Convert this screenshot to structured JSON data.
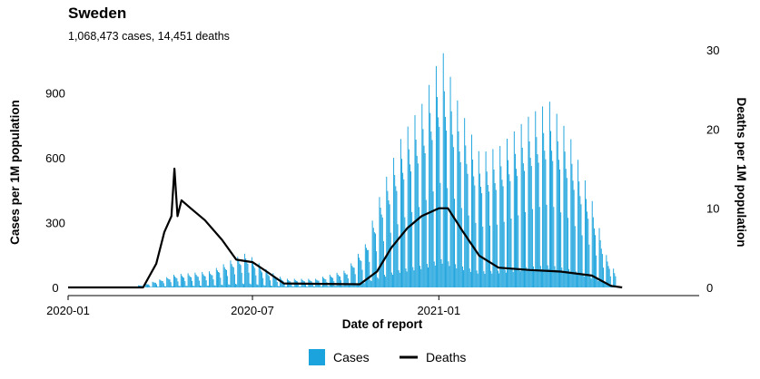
{
  "chart_data": {
    "type": "bar+line",
    "title": "Sweden",
    "subtitle": "1,068,473 cases, 14,451 deaths",
    "xlabel": "Date of report",
    "ylabel_left": "Cases per 1M population",
    "ylabel_right": "Deaths per 1M population",
    "x_ticks": [
      "2020-01",
      "2020-07",
      "2021-01"
    ],
    "x_range": [
      "2020-01-01",
      "2021-09-15"
    ],
    "y_left_ticks": [
      "0",
      "300",
      "600",
      "900"
    ],
    "y_left_range": [
      0,
      1100
    ],
    "y_right_ticks": [
      "0",
      "10",
      "20",
      "30"
    ],
    "y_right_range": [
      0,
      30
    ],
    "grid": false,
    "legend_position": "bottom",
    "colors": {
      "cases": "#1ba3dd",
      "deaths": "#000000"
    },
    "series": [
      {
        "name": "Cases",
        "axis": "left",
        "kind": "daily bars, weekly pattern (low weekend reporting)",
        "weekday_peak_cases": [
          {
            "date": "2020-03-01",
            "value": 0
          },
          {
            "date": "2020-03-20",
            "value": 20
          },
          {
            "date": "2020-04-15",
            "value": 60
          },
          {
            "date": "2020-05-20",
            "value": 75
          },
          {
            "date": "2020-06-15",
            "value": 140
          },
          {
            "date": "2020-06-25",
            "value": 160
          },
          {
            "date": "2020-07-15",
            "value": 80
          },
          {
            "date": "2020-08-01",
            "value": 40
          },
          {
            "date": "2020-09-01",
            "value": 40
          },
          {
            "date": "2020-10-01",
            "value": 80
          },
          {
            "date": "2020-10-20",
            "value": 200
          },
          {
            "date": "2020-11-05",
            "value": 450
          },
          {
            "date": "2020-11-25",
            "value": 700
          },
          {
            "date": "2020-12-15",
            "value": 850
          },
          {
            "date": "2021-01-04",
            "value": 1100
          },
          {
            "date": "2021-01-20",
            "value": 850
          },
          {
            "date": "2021-02-10",
            "value": 620
          },
          {
            "date": "2021-03-01",
            "value": 650
          },
          {
            "date": "2021-04-01",
            "value": 800
          },
          {
            "date": "2021-04-20",
            "value": 860
          },
          {
            "date": "2021-05-10",
            "value": 700
          },
          {
            "date": "2021-06-01",
            "value": 400
          },
          {
            "date": "2021-06-15",
            "value": 150
          },
          {
            "date": "2021-06-25",
            "value": 60
          }
        ]
      },
      {
        "name": "Deaths",
        "axis": "right",
        "kind": "line",
        "points": [
          {
            "date": "2020-01-01",
            "value": 0
          },
          {
            "date": "2020-03-15",
            "value": 0
          },
          {
            "date": "2020-03-28",
            "value": 3
          },
          {
            "date": "2020-04-05",
            "value": 7
          },
          {
            "date": "2020-04-12",
            "value": 9
          },
          {
            "date": "2020-04-15",
            "value": 15
          },
          {
            "date": "2020-04-18",
            "value": 9
          },
          {
            "date": "2020-04-22",
            "value": 11
          },
          {
            "date": "2020-05-01",
            "value": 10
          },
          {
            "date": "2020-05-15",
            "value": 8.5
          },
          {
            "date": "2020-06-01",
            "value": 6
          },
          {
            "date": "2020-06-15",
            "value": 3.5
          },
          {
            "date": "2020-07-01",
            "value": 3.2
          },
          {
            "date": "2020-07-15",
            "value": 2
          },
          {
            "date": "2020-08-01",
            "value": 0.5
          },
          {
            "date": "2020-10-15",
            "value": 0.4
          },
          {
            "date": "2020-11-01",
            "value": 2
          },
          {
            "date": "2020-11-15",
            "value": 5
          },
          {
            "date": "2020-12-01",
            "value": 7.5
          },
          {
            "date": "2020-12-15",
            "value": 9
          },
          {
            "date": "2021-01-01",
            "value": 10
          },
          {
            "date": "2021-01-10",
            "value": 10
          },
          {
            "date": "2021-01-25",
            "value": 7
          },
          {
            "date": "2021-02-10",
            "value": 4
          },
          {
            "date": "2021-03-01",
            "value": 2.5
          },
          {
            "date": "2021-04-01",
            "value": 2.2
          },
          {
            "date": "2021-05-01",
            "value": 2
          },
          {
            "date": "2021-06-01",
            "value": 1.5
          },
          {
            "date": "2021-06-20",
            "value": 0.2
          },
          {
            "date": "2021-07-01",
            "value": 0
          }
        ]
      }
    ]
  }
}
